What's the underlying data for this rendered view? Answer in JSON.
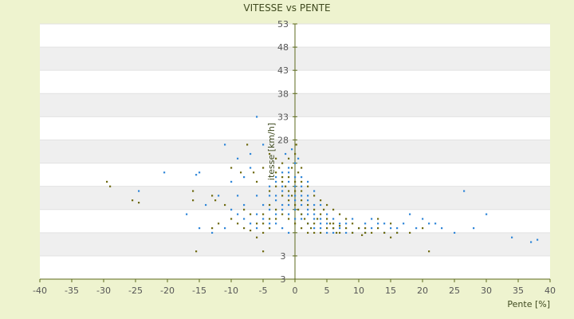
{
  "chart_data": {
    "type": "scatter",
    "title": "VITESSE vs PENTE",
    "xlabel": "Pente [%]",
    "ylabel": "itesse [km/h]",
    "xlim": [
      -40,
      40
    ],
    "ylim": [
      -2,
      53
    ],
    "x_ticks": [
      -40,
      -35,
      -30,
      -25,
      -20,
      -15,
      -10,
      -5,
      0,
      5,
      10,
      15,
      20,
      25,
      30,
      35,
      40
    ],
    "y_ticks": [
      3,
      8,
      13,
      18,
      23,
      28,
      33,
      38,
      43,
      48,
      53
    ],
    "y_tick_labels": [
      "3",
      "",
      "",
      "",
      "",
      "28",
      "33",
      "38",
      "43",
      "48",
      "53"
    ],
    "y_bottom_label": "3",
    "grid": true,
    "colors": {
      "series_a": "#2f86d8",
      "series_b": "#6e6a10",
      "axis": "#5c6a1e",
      "band": "#efefef"
    },
    "series": [
      {
        "color": "#2f86d8",
        "points": [
          [
            -24.5,
            17
          ],
          [
            -20.5,
            21
          ],
          [
            -15,
            21
          ],
          [
            -15.5,
            20.5
          ],
          [
            -11,
            27
          ],
          [
            -9,
            24
          ],
          [
            -7,
            25
          ],
          [
            -6,
            33
          ],
          [
            -5,
            27
          ],
          [
            -7,
            22
          ],
          [
            -8,
            20
          ],
          [
            -10,
            19
          ],
          [
            -12,
            16
          ],
          [
            -14,
            14
          ],
          [
            -17,
            12
          ],
          [
            -13,
            8
          ],
          [
            -15,
            9
          ],
          [
            -11,
            9
          ],
          [
            -9,
            12
          ],
          [
            -8,
            14
          ],
          [
            -6,
            16
          ],
          [
            -4,
            18
          ],
          [
            -3,
            20
          ],
          [
            -2,
            21
          ],
          [
            -1,
            22
          ],
          [
            0,
            23
          ],
          [
            -1,
            19
          ],
          [
            -2,
            17
          ],
          [
            -3,
            15
          ],
          [
            -4,
            13
          ],
          [
            -5,
            11
          ],
          [
            -6,
            9
          ],
          [
            -4,
            10
          ],
          [
            -3,
            12
          ],
          [
            -2,
            14
          ],
          [
            -1,
            16
          ],
          [
            0,
            18
          ],
          [
            1,
            20
          ],
          [
            2,
            19
          ],
          [
            3,
            17
          ],
          [
            0,
            15
          ],
          [
            1,
            14
          ],
          [
            2,
            13
          ],
          [
            3,
            12
          ],
          [
            4,
            11
          ],
          [
            5,
            10
          ],
          [
            6,
            9
          ],
          [
            7,
            9
          ],
          [
            8,
            8
          ],
          [
            9,
            8
          ],
          [
            10,
            9
          ],
          [
            11,
            8
          ],
          [
            12,
            9
          ],
          [
            13,
            10
          ],
          [
            14,
            8
          ],
          [
            15,
            9
          ],
          [
            16,
            8
          ],
          [
            17,
            10
          ],
          [
            18,
            12
          ],
          [
            19,
            9
          ],
          [
            20,
            11
          ],
          [
            21,
            10
          ],
          [
            22,
            10
          ],
          [
            23,
            9
          ],
          [
            25,
            8
          ],
          [
            26.5,
            17
          ],
          [
            28,
            9
          ],
          [
            30,
            12
          ],
          [
            34,
            7
          ],
          [
            37,
            6
          ],
          [
            38,
            6.5
          ],
          [
            0,
            20
          ],
          [
            -1,
            21
          ],
          [
            1,
            18
          ],
          [
            2,
            16
          ],
          [
            3,
            14
          ],
          [
            -2,
            13
          ],
          [
            -1,
            12
          ],
          [
            0,
            11
          ],
          [
            1,
            11
          ],
          [
            2,
            10
          ],
          [
            3,
            9
          ],
          [
            4,
            9
          ],
          [
            5,
            8
          ],
          [
            6,
            8
          ],
          [
            -5,
            14
          ],
          [
            -6,
            12
          ],
          [
            -7,
            10
          ],
          [
            -3,
            16
          ],
          [
            4,
            14
          ],
          [
            5,
            12
          ],
          [
            6,
            11
          ],
          [
            7,
            10
          ],
          [
            8,
            10
          ],
          [
            9,
            11
          ],
          [
            11,
            10
          ],
          [
            12,
            11
          ],
          [
            14,
            10
          ],
          [
            16,
            9
          ],
          [
            -2,
            18
          ],
          [
            -3,
            19
          ],
          [
            -4,
            16
          ],
          [
            0,
            13
          ],
          [
            1,
            12
          ],
          [
            2,
            12
          ],
          [
            3,
            11
          ],
          [
            4,
            10
          ],
          [
            -1,
            14
          ],
          [
            0,
            16
          ],
          [
            1,
            16
          ],
          [
            2,
            15
          ],
          [
            -9,
            16
          ],
          [
            -10,
            13
          ],
          [
            -8,
            11
          ],
          [
            -3,
            10
          ],
          [
            -2,
            9
          ],
          [
            -1,
            8
          ],
          [
            -0.5,
            26
          ],
          [
            0.5,
            24
          ],
          [
            -1.5,
            25
          ]
        ]
      },
      {
        "color": "#6e6a10",
        "points": [
          [
            -29.5,
            19
          ],
          [
            -29,
            18
          ],
          [
            -25.5,
            15
          ],
          [
            -24.5,
            14.5
          ],
          [
            -16,
            15
          ],
          [
            -16,
            17
          ],
          [
            -15.5,
            4
          ],
          [
            -13,
            16
          ],
          [
            -12.5,
            15
          ],
          [
            -10,
            22
          ],
          [
            -8.5,
            21
          ],
          [
            -7.5,
            27
          ],
          [
            -6.5,
            21
          ],
          [
            -6,
            19
          ],
          [
            -5,
            4
          ],
          [
            -5,
            22
          ],
          [
            -4,
            25
          ],
          [
            -3,
            24
          ],
          [
            -2.5,
            22
          ],
          [
            -2,
            20
          ],
          [
            -1.5,
            18
          ],
          [
            -1,
            17
          ],
          [
            -0.5,
            16
          ],
          [
            0,
            14
          ],
          [
            0.5,
            13
          ],
          [
            1,
            12
          ],
          [
            1.5,
            11
          ],
          [
            2,
            10
          ],
          [
            2.5,
            9
          ],
          [
            3,
            10
          ],
          [
            3.5,
            11
          ],
          [
            4,
            12
          ],
          [
            4.5,
            13
          ],
          [
            5,
            11
          ],
          [
            5.5,
            10
          ],
          [
            6,
            9
          ],
          [
            6.5,
            8
          ],
          [
            7,
            8
          ],
          [
            8,
            9
          ],
          [
            9,
            8
          ],
          [
            10,
            9
          ],
          [
            10.5,
            7.5
          ],
          [
            11,
            8
          ],
          [
            12,
            8
          ],
          [
            13,
            9
          ],
          [
            14,
            8
          ],
          [
            15,
            7
          ],
          [
            16,
            8
          ],
          [
            18,
            8
          ],
          [
            20,
            9
          ],
          [
            21,
            4
          ],
          [
            -11,
            14
          ],
          [
            -10,
            11
          ],
          [
            -9,
            10
          ],
          [
            -8,
            9
          ],
          [
            -7,
            8.5
          ],
          [
            -6,
            10
          ],
          [
            -5,
            12
          ],
          [
            -4,
            14
          ],
          [
            -3,
            13
          ],
          [
            -2,
            12
          ],
          [
            -1,
            11
          ],
          [
            0,
            10
          ],
          [
            1,
            9
          ],
          [
            2,
            8
          ],
          [
            3,
            8
          ],
          [
            4,
            8
          ],
          [
            5,
            9
          ],
          [
            -3,
            21
          ],
          [
            -2,
            23
          ],
          [
            -1,
            24
          ],
          [
            0,
            25
          ],
          [
            0.2,
            27
          ],
          [
            -0.5,
            22
          ],
          [
            0.5,
            21
          ],
          [
            1,
            22
          ],
          [
            -1,
            20
          ],
          [
            -2,
            19
          ],
          [
            -3,
            18
          ],
          [
            -4,
            17
          ],
          [
            1,
            19
          ],
          [
            2,
            18
          ],
          [
            3,
            16
          ],
          [
            4,
            15
          ],
          [
            5,
            14
          ],
          [
            6,
            13
          ],
          [
            7,
            12
          ],
          [
            8,
            11
          ],
          [
            -6,
            7
          ],
          [
            -5,
            8
          ],
          [
            -4,
            9
          ],
          [
            -7,
            12
          ],
          [
            -8,
            13
          ],
          [
            -12,
            10
          ],
          [
            -13,
            9
          ],
          [
            3,
            13
          ],
          [
            2,
            14
          ],
          [
            1,
            15
          ],
          [
            0,
            17
          ],
          [
            -1,
            15
          ],
          [
            -2,
            16
          ],
          [
            6,
            10
          ],
          [
            7,
            9.5
          ],
          [
            9,
            10
          ],
          [
            11,
            9
          ],
          [
            13,
            11
          ],
          [
            15,
            10
          ],
          [
            0,
            19
          ],
          [
            1,
            17
          ],
          [
            -3,
            11
          ],
          [
            -4,
            11
          ],
          [
            -5,
            10
          ]
        ]
      }
    ]
  }
}
